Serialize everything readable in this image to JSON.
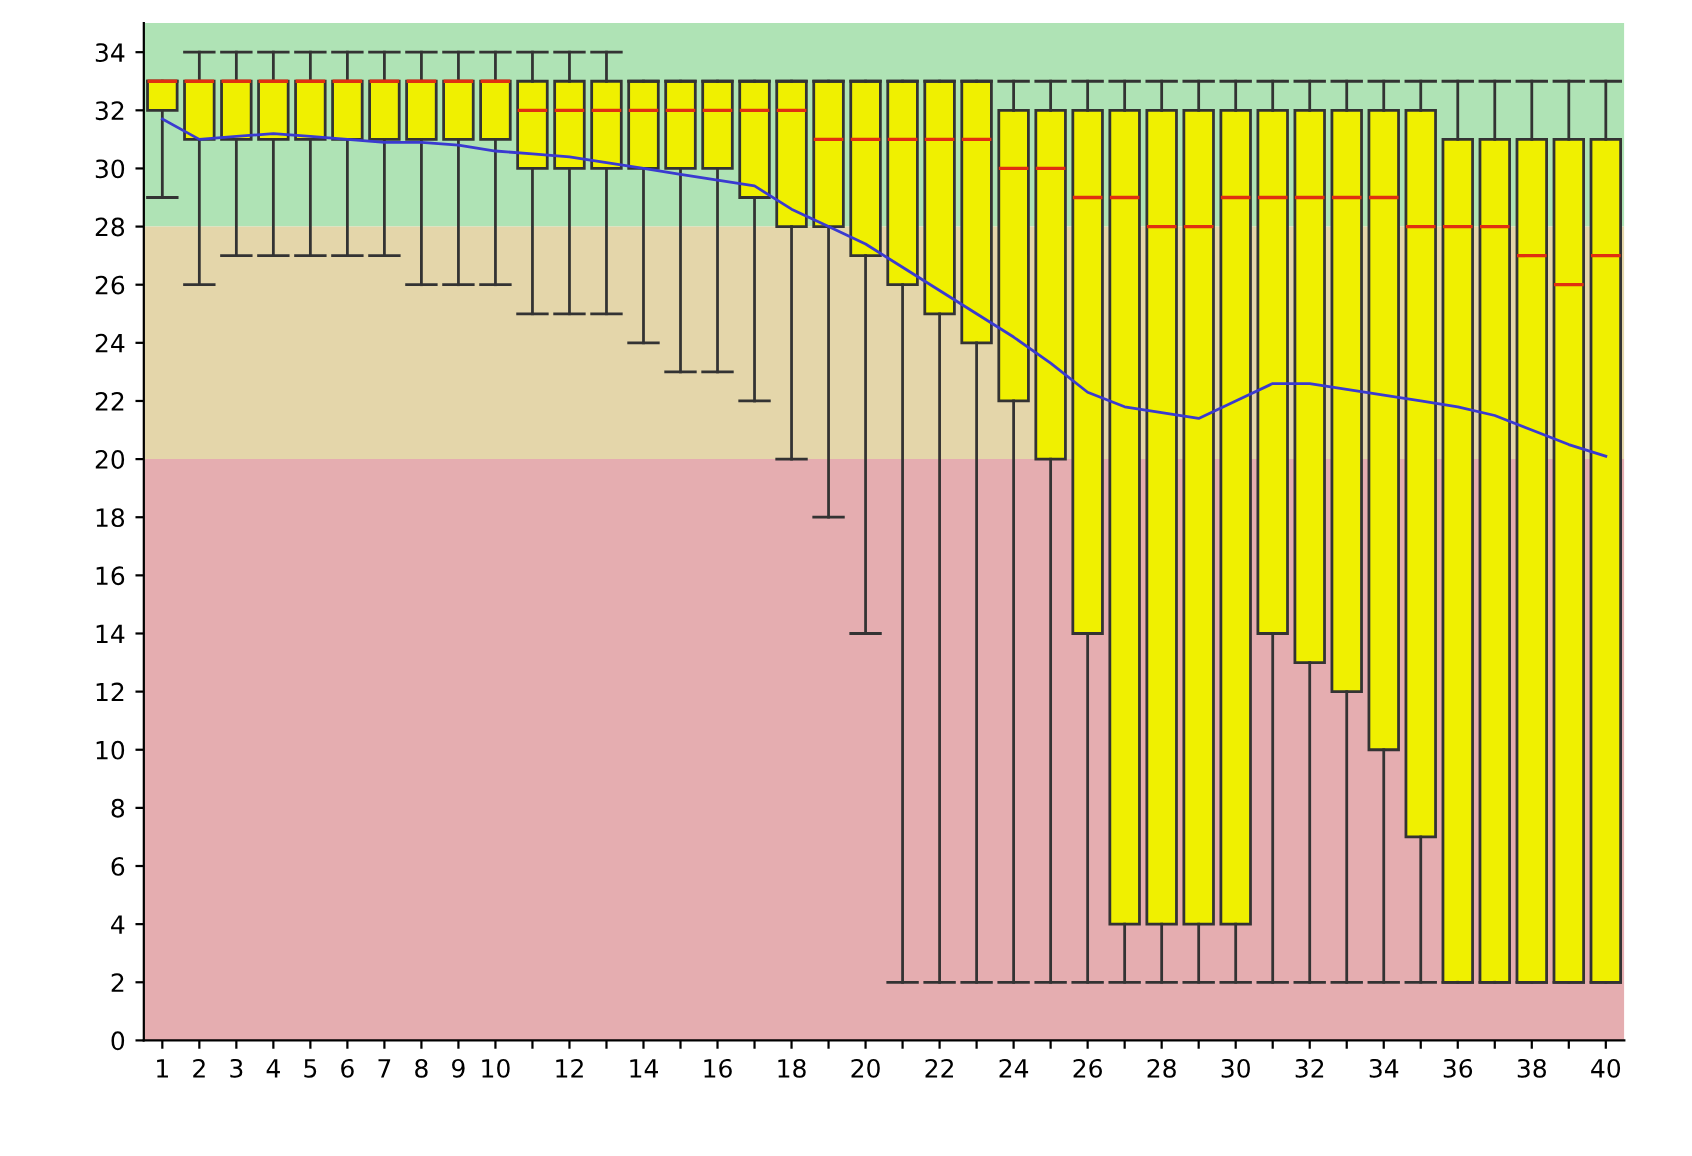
{
  "chart_data": {
    "type": "box",
    "categories": [
      "1",
      "2",
      "3",
      "4",
      "5",
      "6",
      "7",
      "8",
      "9",
      "10",
      null,
      "12",
      null,
      "14",
      null,
      "16",
      null,
      "18",
      null,
      "20",
      null,
      "22",
      null,
      "24",
      null,
      "26",
      null,
      "28",
      null,
      "30",
      null,
      "32",
      null,
      "34",
      null,
      "36",
      null,
      "38",
      null,
      "40"
    ],
    "series": [
      {
        "type": "box",
        "color": "#f0f000",
        "boxes": [
          {
            "low": 29,
            "q1": 32,
            "median": 33,
            "q3": 33,
            "high": 33
          },
          {
            "low": 26,
            "q1": 31,
            "median": 33,
            "q3": 33,
            "high": 34
          },
          {
            "low": 27,
            "q1": 31,
            "median": 33,
            "q3": 33,
            "high": 34
          },
          {
            "low": 27,
            "q1": 31,
            "median": 33,
            "q3": 33,
            "high": 34
          },
          {
            "low": 27,
            "q1": 31,
            "median": 33,
            "q3": 33,
            "high": 34
          },
          {
            "low": 27,
            "q1": 31,
            "median": 33,
            "q3": 33,
            "high": 34
          },
          {
            "low": 27,
            "q1": 31,
            "median": 33,
            "q3": 33,
            "high": 34
          },
          {
            "low": 26,
            "q1": 31,
            "median": 33,
            "q3": 33,
            "high": 34
          },
          {
            "low": 26,
            "q1": 31,
            "median": 33,
            "q3": 33,
            "high": 34
          },
          {
            "low": 26,
            "q1": 31,
            "median": 33,
            "q3": 33,
            "high": 34
          },
          {
            "low": 25,
            "q1": 30,
            "median": 32,
            "q3": 33,
            "high": 34
          },
          {
            "low": 25,
            "q1": 30,
            "median": 32,
            "q3": 33,
            "high": 34
          },
          {
            "low": 25,
            "q1": 30,
            "median": 32,
            "q3": 33,
            "high": 34
          },
          {
            "low": 24,
            "q1": 30,
            "median": 32,
            "q3": 33,
            "high": 33
          },
          {
            "low": 23,
            "q1": 30,
            "median": 32,
            "q3": 33,
            "high": 33
          },
          {
            "low": 23,
            "q1": 30,
            "median": 32,
            "q3": 33,
            "high": 33
          },
          {
            "low": 22,
            "q1": 29,
            "median": 32,
            "q3": 33,
            "high": 33
          },
          {
            "low": 20,
            "q1": 28,
            "median": 32,
            "q3": 33,
            "high": 33
          },
          {
            "low": 18,
            "q1": 28,
            "median": 31,
            "q3": 33,
            "high": 33
          },
          {
            "low": 14,
            "q1": 27,
            "median": 31,
            "q3": 33,
            "high": 33
          },
          {
            "low": 2,
            "q1": 26,
            "median": 31,
            "q3": 33,
            "high": 33
          },
          {
            "low": 2,
            "q1": 25,
            "median": 31,
            "q3": 33,
            "high": 33
          },
          {
            "low": 2,
            "q1": 24,
            "median": 31,
            "q3": 33,
            "high": 33
          },
          {
            "low": 2,
            "q1": 22,
            "median": 30,
            "q3": 32,
            "high": 33
          },
          {
            "low": 2,
            "q1": 20,
            "median": 30,
            "q3": 32,
            "high": 33
          },
          {
            "low": 2,
            "q1": 14,
            "median": 29,
            "q3": 32,
            "high": 33
          },
          {
            "low": 2,
            "q1": 4,
            "median": 29,
            "q3": 32,
            "high": 33
          },
          {
            "low": 2,
            "q1": 4,
            "median": 28,
            "q3": 32,
            "high": 33
          },
          {
            "low": 2,
            "q1": 4,
            "median": 28,
            "q3": 32,
            "high": 33
          },
          {
            "low": 2,
            "q1": 4,
            "median": 29,
            "q3": 32,
            "high": 33
          },
          {
            "low": 2,
            "q1": 14,
            "median": 29,
            "q3": 32,
            "high": 33
          },
          {
            "low": 2,
            "q1": 13,
            "median": 29,
            "q3": 32,
            "high": 33
          },
          {
            "low": 2,
            "q1": 12,
            "median": 29,
            "q3": 32,
            "high": 33
          },
          {
            "low": 2,
            "q1": 10,
            "median": 29,
            "q3": 32,
            "high": 33
          },
          {
            "low": 2,
            "q1": 7,
            "median": 28,
            "q3": 32,
            "high": 33
          },
          {
            "low": 2,
            "q1": 2,
            "median": 28,
            "q3": 31,
            "high": 33
          },
          {
            "low": 2,
            "q1": 2,
            "median": 28,
            "q3": 31,
            "high": 33
          },
          {
            "low": 2,
            "q1": 2,
            "median": 27,
            "q3": 31,
            "high": 33
          },
          {
            "low": 2,
            "q1": 2,
            "median": 26,
            "q3": 31,
            "high": 33
          },
          {
            "low": 2,
            "q1": 2,
            "median": 27,
            "q3": 31,
            "high": 33
          }
        ]
      },
      {
        "type": "line",
        "color": "#3a3ad0",
        "values": [
          31.7,
          31.0,
          31.1,
          31.2,
          31.1,
          31.0,
          30.9,
          30.9,
          30.8,
          30.6,
          30.5,
          30.4,
          30.2,
          30.0,
          29.8,
          29.6,
          29.4,
          28.6,
          28.0,
          27.4,
          26.6,
          25.8,
          25.0,
          24.2,
          23.3,
          22.3,
          21.8,
          21.6,
          21.4,
          22.0,
          22.6,
          22.6,
          22.4,
          22.2,
          22.0,
          21.8,
          21.5,
          21.0,
          20.5,
          20.1
        ]
      }
    ],
    "bands": [
      {
        "axis": "y",
        "from": 28,
        "to": 35,
        "color": "#afe3b5"
      },
      {
        "axis": "y",
        "from": 20,
        "to": 28,
        "color": "#e4d6aa"
      },
      {
        "axis": "y",
        "from": 0,
        "to": 20,
        "color": "#e5adb0"
      }
    ],
    "ylim": [
      0,
      35
    ],
    "yticks": [
      0,
      2,
      4,
      6,
      8,
      10,
      12,
      14,
      16,
      18,
      20,
      22,
      24,
      26,
      28,
      30,
      32,
      34
    ],
    "grid": false
  }
}
